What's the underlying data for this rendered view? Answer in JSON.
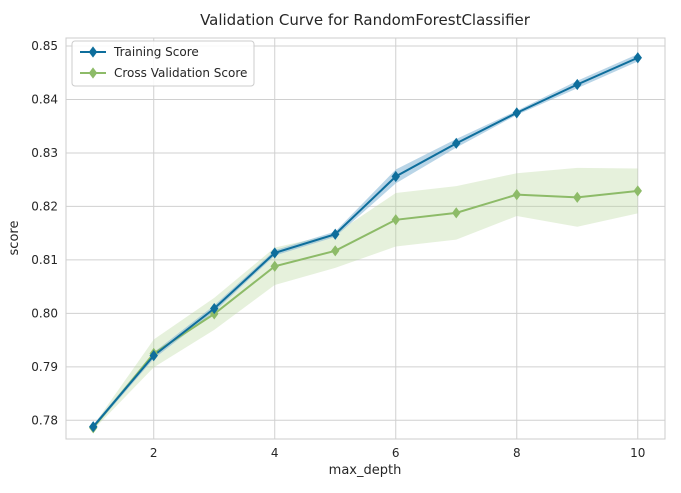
{
  "chart_data": {
    "type": "line",
    "title": "Validation Curve for RandomForestClassifier",
    "xlabel": "max_depth",
    "ylabel": "score",
    "x": [
      1,
      2,
      3,
      4,
      5,
      6,
      7,
      8,
      9,
      10
    ],
    "xticks": [
      2,
      4,
      6,
      8,
      10
    ],
    "yticks": [
      0.78,
      0.79,
      0.8,
      0.81,
      0.82,
      0.83,
      0.84,
      0.85
    ],
    "ytick_labels": [
      "0.78",
      "0.79",
      "0.80",
      "0.81",
      "0.82",
      "0.83",
      "0.84",
      "0.85"
    ],
    "xlim": [
      0.55,
      10.45
    ],
    "ylim": [
      0.7765,
      0.8515
    ],
    "grid": true,
    "legend_position": "top-left",
    "series": [
      {
        "name": "Training Score",
        "color": "#0e6e9c",
        "band_color": "#7fb3d4",
        "marker": "diamond",
        "values": [
          0.7788,
          0.7921,
          0.8009,
          0.8113,
          0.8148,
          0.8256,
          0.8318,
          0.8375,
          0.8428,
          0.8478
        ],
        "std": [
          0.0004,
          0.0006,
          0.0006,
          0.0005,
          0.0005,
          0.0013,
          0.0008,
          0.0004,
          0.0007,
          0.0007
        ]
      },
      {
        "name": "Cross Validation Score",
        "color": "#8dbb68",
        "band_color": "#b8d69c",
        "marker": "diamond",
        "values": [
          0.7786,
          0.7925,
          0.7999,
          0.8088,
          0.8117,
          0.8175,
          0.8188,
          0.8222,
          0.8217,
          0.8229
        ],
        "std": [
          0.0004,
          0.0026,
          0.003,
          0.0035,
          0.0032,
          0.005,
          0.005,
          0.004,
          0.0055,
          0.0042
        ]
      }
    ]
  }
}
